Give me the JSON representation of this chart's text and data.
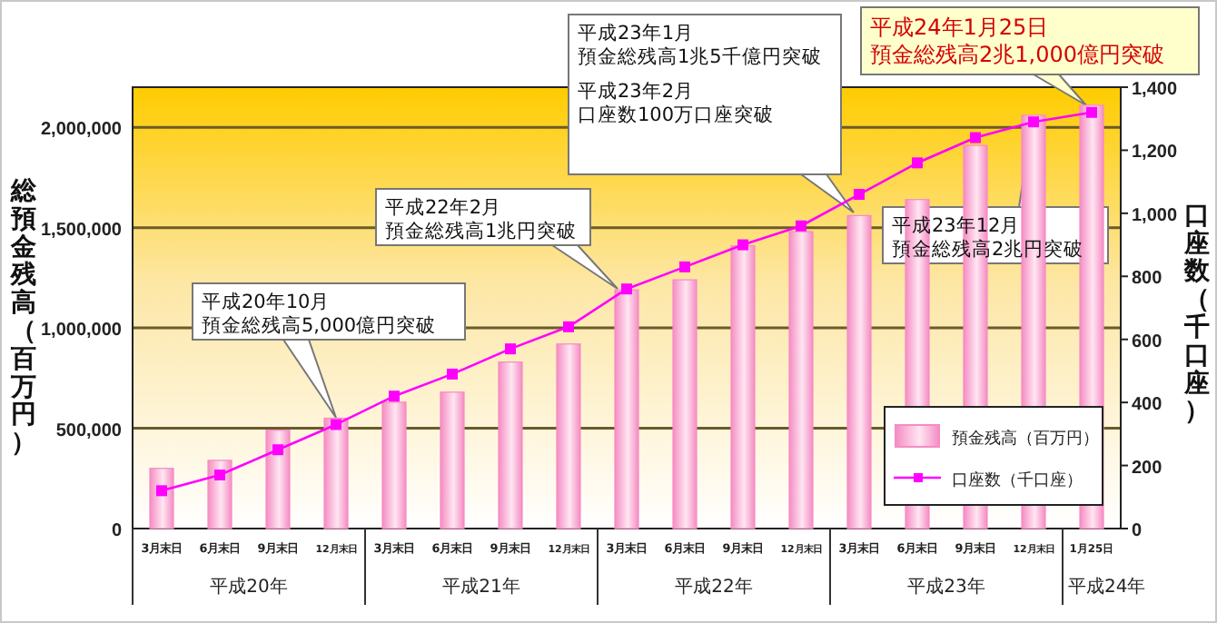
{
  "chart_data": {
    "type": "bar",
    "ylabel": "総預金残高（百万円）",
    "y2label": "口座数（千口座）",
    "categories": [
      "3月末日",
      "6月末日",
      "9月末日",
      "12月末日",
      "3月末日",
      "6月末日",
      "9月末日",
      "12月末日",
      "3月末日",
      "6月末日",
      "9月末日",
      "12月末日",
      "3月末日",
      "6月末日",
      "9月末日",
      "12月末日",
      "1月25日"
    ],
    "series": [
      {
        "name": "預金残高（百万円）",
        "color": "#f58cc3",
        "values": [
          300000,
          340000,
          490000,
          550000,
          630000,
          680000,
          830000,
          920000,
          1190000,
          1240000,
          1410000,
          1480000,
          1560000,
          1640000,
          1910000,
          2060000,
          2110000
        ]
      },
      {
        "name": "口座数（千口座）",
        "type": "line",
        "axis": "y2",
        "color": "#ff00ff",
        "values": [
          120,
          170,
          250,
          330,
          420,
          490,
          570,
          640,
          760,
          830,
          900,
          960,
          1060,
          1160,
          1240,
          1290,
          1320
        ]
      }
    ],
    "ylim": [
      0,
      2200000
    ],
    "yticks": [
      0,
      {
        "value": 500000,
        "label": "500,000"
      },
      {
        "value": 1000000,
        "label": "1,000,000"
      },
      {
        "value": 1500000,
        "label": "1,500,000"
      },
      {
        "value": 2000000,
        "label": "2,000,000"
      }
    ],
    "y2lim": [
      0,
      1400
    ],
    "y2ticks": [
      0,
      200,
      400,
      600,
      800,
      {
        "value": 1000,
        "label": "1,000"
      },
      {
        "value": 1200,
        "label": "1,200"
      },
      {
        "value": 1400,
        "label": "1,400"
      }
    ],
    "grid": "y",
    "legend": "bottom right",
    "marker": "square",
    "line_style": "solid",
    "annotations": [
      "平成20年10月",
      "預金総残高5,000億円突破",
      "平成22年2月",
      "預金総残高1兆円突破",
      "平成23年1月",
      "預金総残高1兆5千億円突破",
      "平成23年2月",
      "口座数100万口座突破",
      "平成23年12月",
      "預金総残高2兆円突破",
      "平成24年1月25日",
      "預金総残高2兆1,000億円突破",
      "平成20年",
      "平成21年",
      "平成22年",
      "平成23年",
      "平成24年"
    ]
  }
}
